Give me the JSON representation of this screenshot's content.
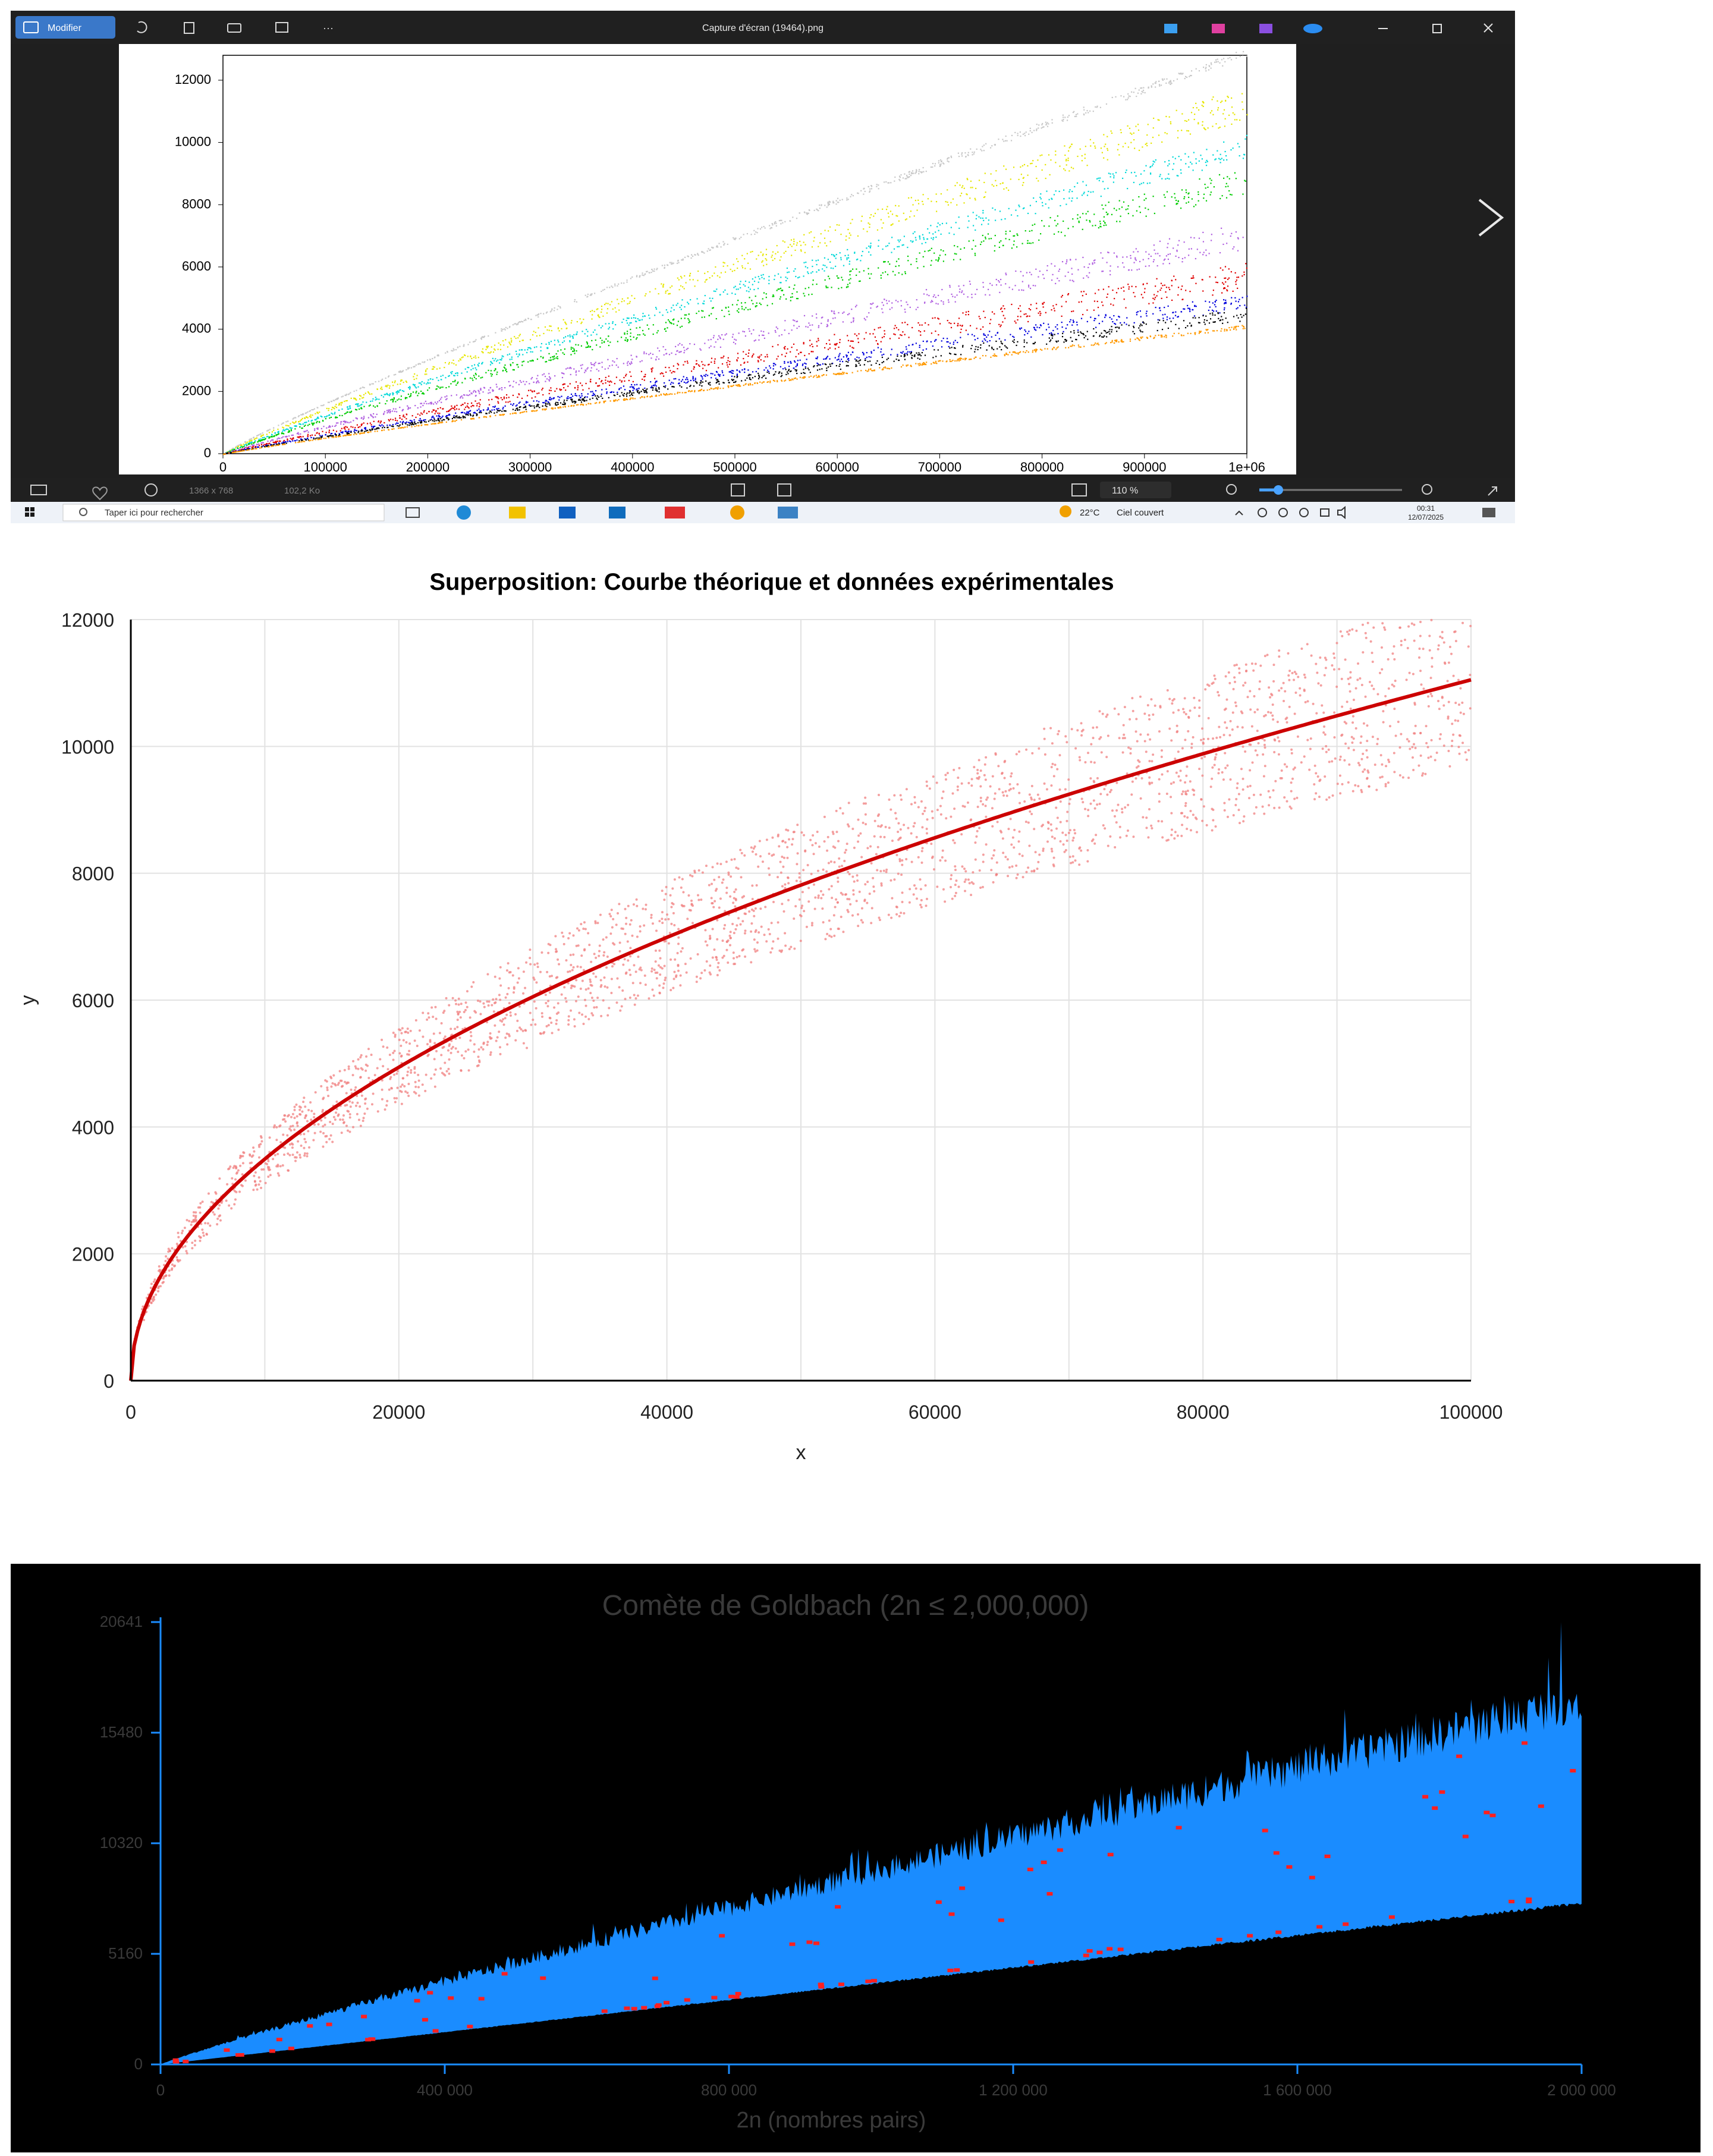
{
  "viewer": {
    "title": "Capture d'écran (19464).png",
    "edit_label": "Modifier",
    "more_label": "···",
    "dimensions": "1366 x 768",
    "filesize": "102,2 Ko",
    "zoom": "110 %",
    "next_glyph": "›"
  },
  "taskbar": {
    "search_placeholder": "Taper ici pour rechercher",
    "weather_temp": "22°C",
    "weather_desc": "Ciel couvert",
    "time": "00:31",
    "date": "12/07/2025"
  },
  "chart_data": [
    {
      "type": "scatter",
      "title": "",
      "xlabel": "",
      "ylabel": "",
      "xlim": [
        0,
        1000000
      ],
      "ylim": [
        0,
        12800
      ],
      "x_ticks": [
        "0",
        "100000",
        "200000",
        "300000",
        "400000",
        "500000",
        "600000",
        "700000",
        "800000",
        "900000",
        "1e+06"
      ],
      "y_ticks": [
        "0",
        "2000",
        "4000",
        "6000",
        "8000",
        "10000",
        "12000"
      ],
      "series": [
        {
          "color": "#c8c8c8",
          "y_at_max": 12900,
          "spread": 300
        },
        {
          "color": "#e6e600",
          "y_at_max": 11300,
          "spread": 1100
        },
        {
          "color": "#00d8d8",
          "y_at_max": 9900,
          "spread": 800
        },
        {
          "color": "#00cc00",
          "y_at_max": 8800,
          "spread": 900
        },
        {
          "color": "#b060e0",
          "y_at_max": 7000,
          "spread": 900
        },
        {
          "color": "#e00000",
          "y_at_max": 5700,
          "spread": 900
        },
        {
          "color": "#0000dd",
          "y_at_max": 4900,
          "spread": 500
        },
        {
          "color": "#000000",
          "y_at_max": 4500,
          "spread": 400
        },
        {
          "color": "#ff9900",
          "y_at_max": 4100,
          "spread": 120
        }
      ]
    },
    {
      "type": "scatter",
      "title": "Superposition: Courbe théorique et données expérimentales",
      "xlabel": "x",
      "ylabel": "y",
      "xlim": [
        0,
        100000
      ],
      "ylim": [
        0,
        12000
      ],
      "x_ticks": [
        "0",
        "20000",
        "40000",
        "60000",
        "80000",
        "100000"
      ],
      "y_ticks": [
        "0",
        "2000",
        "4000",
        "6000",
        "8000",
        "10000",
        "12000"
      ],
      "grid": true,
      "series": [
        {
          "kind": "scatter",
          "color": "#f08080",
          "band_low_at_max": 9400,
          "band_high_at_max": 12200
        },
        {
          "kind": "line",
          "color": "#cc0000",
          "y_at_max": 11050,
          "shape": "sqrt"
        }
      ]
    },
    {
      "type": "area",
      "title": "Comète de Goldbach (2n ≤ 2,000,000)",
      "xlabel": "2n (nombres pairs)",
      "ylabel": "",
      "xlim": [
        0,
        2000000
      ],
      "ylim": [
        0,
        20641
      ],
      "x_ticks": [
        "0",
        "400 000",
        "800 000",
        "1 200 000",
        "1 600 000",
        "2 000 000"
      ],
      "y_ticks": [
        "0",
        "5160",
        "10320",
        "15480",
        "20641"
      ],
      "colors": {
        "fill": "#1a8cff",
        "markers": "#ff2020",
        "background": "#000000"
      },
      "series": [
        {
          "name": "",
          "lower_at_max": 7600,
          "upper_at_max": 17000,
          "max_spike": 20641
        }
      ]
    }
  ]
}
